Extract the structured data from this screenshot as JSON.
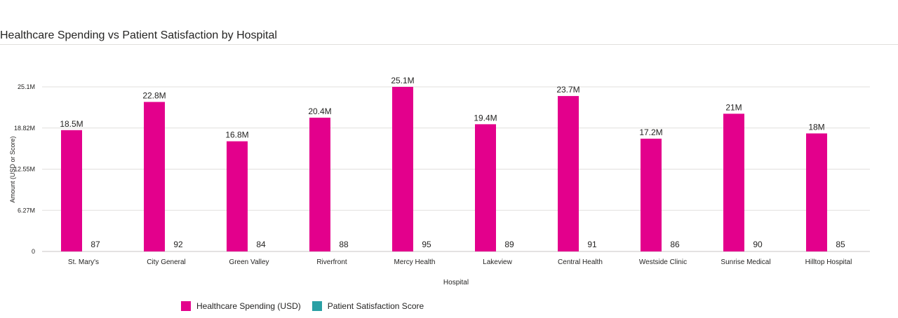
{
  "title": "Healthcare Spending vs Patient Satisfaction by Hospital",
  "chart_data": {
    "type": "bar",
    "categories": [
      "St. Mary's",
      "City General",
      "Green Valley",
      "Riverfront",
      "Mercy Health",
      "Lakeview",
      "Central Health",
      "Westside Clinic",
      "Sunrise Medical",
      "Hilltop Hospital"
    ],
    "series": [
      {
        "name": "Healthcare Spending (USD)",
        "color": "#E3008C",
        "values": [
          18500000,
          22800000,
          16800000,
          20400000,
          25100000,
          19400000,
          23700000,
          17200000,
          21000000,
          18000000
        ],
        "labels": [
          "18.5M",
          "22.8M",
          "16.8M",
          "20.4M",
          "25.1M",
          "19.4M",
          "23.7M",
          "17.2M",
          "21M",
          "18M"
        ]
      },
      {
        "name": "Patient Satisfaction Score",
        "color": "#2AA0A4",
        "values": [
          87,
          92,
          84,
          88,
          95,
          89,
          91,
          86,
          90,
          85
        ],
        "labels": [
          "87",
          "92",
          "84",
          "88",
          "95",
          "89",
          "91",
          "86",
          "90",
          "85"
        ]
      }
    ],
    "xlabel": "Hospital",
    "ylabel": "Amount (USD or Score)",
    "ylim": [
      0,
      25100000
    ],
    "yticks": [
      0,
      6275000,
      12550000,
      18825000,
      25100000
    ],
    "ytick_labels": [
      "0",
      "6.27M",
      "12.55M",
      "18.82M",
      "25.1M"
    ],
    "grid": true,
    "legend_position": "bottom-left"
  }
}
